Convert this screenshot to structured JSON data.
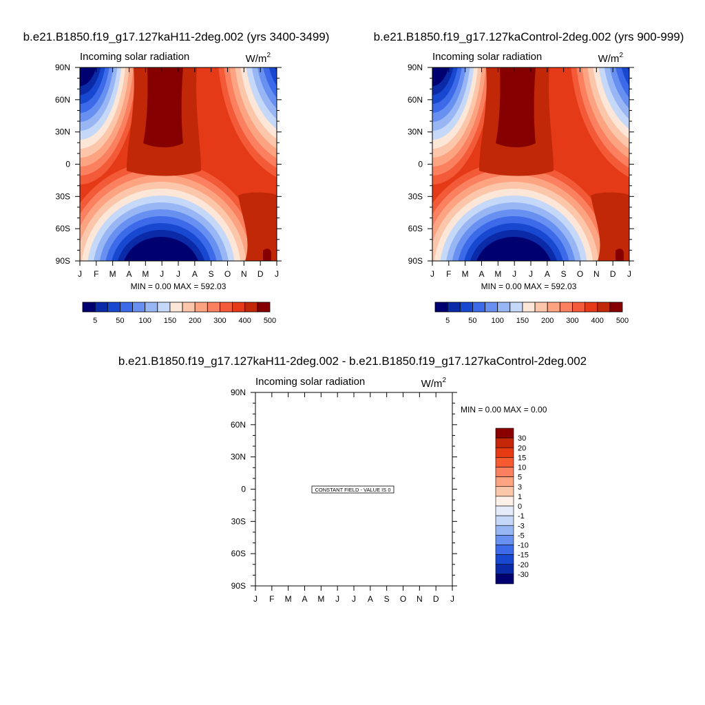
{
  "panels": [
    {
      "title": "b.e21.B1850.f19_g17.127kaH11-2deg.002 (yrs 3400-3499)",
      "subtitle": "Incoming solar radiation",
      "units_base": "W/m",
      "units_exp": "2",
      "stats": "MIN =   0.00 MAX = 592.03"
    },
    {
      "title": "b.e21.B1850.f19_g17.127kaControl-2deg.002 (yrs 900-999)",
      "subtitle": "Incoming solar radiation",
      "units_base": "W/m",
      "units_exp": "2",
      "stats": "MIN =   0.00 MAX = 592.03"
    },
    {
      "title": "b.e21.B1850.f19_g17.127kaH11-2deg.002 - b.e21.B1850.f19_g17.127kaControl-2deg.002",
      "subtitle": "Incoming solar radiation",
      "units_base": "W/m",
      "units_exp": "2",
      "stats": "MIN =   0.00 MAX =   0.00",
      "constant_label": "CONSTANT FIELD - VALUE IS 0"
    }
  ],
  "chart_data": [
    {
      "type": "heatmap",
      "title": "b.e21.B1850.f19_g17.127kaH11-2deg.002 (yrs 3400-3499)",
      "subtitle": "Incoming solar radiation",
      "units": "W/m2",
      "x_ticks": [
        "J",
        "F",
        "M",
        "A",
        "M",
        "J",
        "J",
        "A",
        "S",
        "O",
        "N",
        "D",
        "J"
      ],
      "y_ticks": [
        "90N",
        "60N",
        "30N",
        "0",
        "30S",
        "60S",
        "90S"
      ],
      "ylim": [
        -90,
        90
      ],
      "min": 0.0,
      "max": 592.03,
      "colorbar": {
        "orientation": "horizontal",
        "labels": [
          "5",
          "50",
          "100",
          "150",
          "200",
          "300",
          "400",
          "500"
        ],
        "colors": [
          "#000070",
          "#0a2aa8",
          "#1848d0",
          "#3c6ae8",
          "#6890f0",
          "#98b6f4",
          "#c6d8f8",
          "#fbe6d8",
          "#fcc6aa",
          "#fca482",
          "#fa8060",
          "#f25a38",
          "#e43a18",
          "#c02808",
          "#860000"
        ]
      }
    },
    {
      "type": "heatmap",
      "title": "b.e21.B1850.f19_g17.127kaControl-2deg.002 (yrs 900-999)",
      "subtitle": "Incoming solar radiation",
      "units": "W/m2",
      "x_ticks": [
        "J",
        "F",
        "M",
        "A",
        "M",
        "J",
        "J",
        "A",
        "S",
        "O",
        "N",
        "D",
        "J"
      ],
      "y_ticks": [
        "90N",
        "60N",
        "30N",
        "0",
        "30S",
        "60S",
        "90S"
      ],
      "ylim": [
        -90,
        90
      ],
      "min": 0.0,
      "max": 592.03,
      "colorbar": {
        "orientation": "horizontal",
        "labels": [
          "5",
          "50",
          "100",
          "150",
          "200",
          "300",
          "400",
          "500"
        ],
        "colors": [
          "#000070",
          "#0a2aa8",
          "#1848d0",
          "#3c6ae8",
          "#6890f0",
          "#98b6f4",
          "#c6d8f8",
          "#fbe6d8",
          "#fcc6aa",
          "#fca482",
          "#fa8060",
          "#f25a38",
          "#e43a18",
          "#c02808",
          "#860000"
        ]
      }
    },
    {
      "type": "heatmap",
      "title": "b.e21.B1850.f19_g17.127kaH11-2deg.002 - b.e21.B1850.f19_g17.127kaControl-2deg.002",
      "subtitle": "Incoming solar radiation",
      "units": "W/m2",
      "x_ticks": [
        "J",
        "F",
        "M",
        "A",
        "M",
        "J",
        "J",
        "A",
        "S",
        "O",
        "N",
        "D",
        "J"
      ],
      "y_ticks": [
        "90N",
        "60N",
        "30N",
        "0",
        "30S",
        "60S",
        "90S"
      ],
      "ylim": [
        -90,
        90
      ],
      "min": 0.0,
      "max": 0.0,
      "constant_value": 0,
      "colorbar": {
        "orientation": "vertical",
        "labels": [
          "30",
          "20",
          "15",
          "10",
          "5",
          "3",
          "1",
          "0",
          "-1",
          "-3",
          "-5",
          "-10",
          "-15",
          "-20",
          "-30"
        ],
        "colors": [
          "#8a0000",
          "#c42808",
          "#e63a12",
          "#f65a30",
          "#fa8060",
          "#fca482",
          "#fcc6aa",
          "#fdf0e8",
          "#e4ecfa",
          "#c6d8f8",
          "#98b6f4",
          "#6890f0",
          "#3c6ae8",
          "#1848d0",
          "#0a2aa8",
          "#000070"
        ]
      }
    }
  ]
}
